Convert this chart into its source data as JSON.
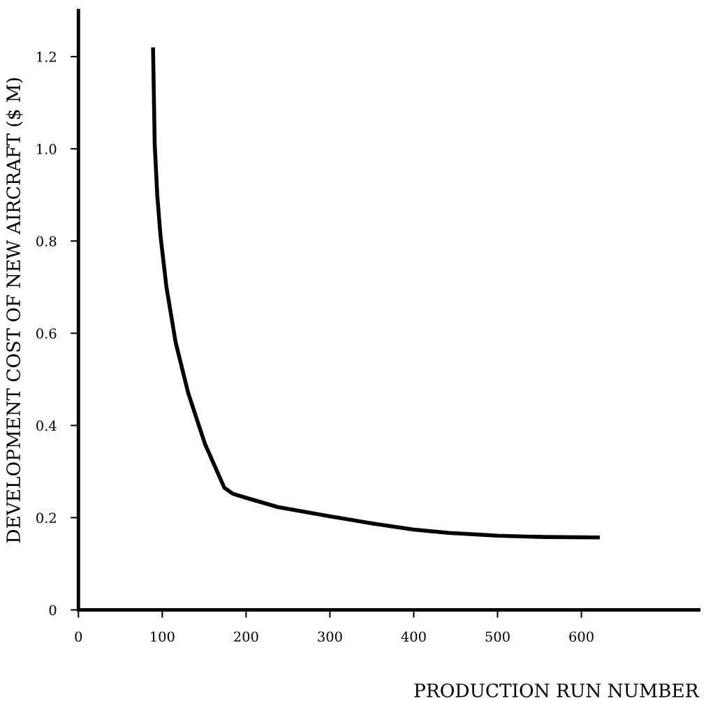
{
  "chart_data": {
    "type": "line",
    "xlabel": "PRODUCTION RUN NUMBER",
    "ylabel": "DEVELOPMENT COST OF NEW AIRCRAFT ($ M)",
    "xlim": [
      0,
      740
    ],
    "xticks": [
      0,
      100,
      200,
      300,
      400,
      500,
      600
    ],
    "ylim": [
      0,
      1.3
    ],
    "yticks": [
      0,
      {
        "value": 0.2,
        "label": "0.2"
      },
      {
        "value": 0.4,
        "label": "0.4"
      },
      {
        "value": 0.6,
        "label": "0.6"
      },
      {
        "value": 0.8,
        "label": "0.8"
      },
      {
        "value": 1.0,
        "label": "1.0"
      },
      {
        "value": 1.2,
        "label": "1.2"
      }
    ],
    "grid": false,
    "legend": false,
    "marker": "none",
    "line_style": "solid",
    "series": [
      {
        "color": "#000000",
        "x": [
          89,
          91,
          94,
          98,
          105,
          116,
          131,
          151,
          174,
          184,
          200,
          238,
          300,
          352,
          400,
          442,
          500,
          557,
          622
        ],
        "values": [
          1.22,
          1.01,
          0.9,
          0.81,
          0.7,
          0.58,
          0.47,
          0.36,
          0.265,
          0.252,
          0.243,
          0.223,
          0.203,
          0.187,
          0.174,
          0.167,
          0.161,
          0.158,
          0.157
        ]
      }
    ]
  }
}
